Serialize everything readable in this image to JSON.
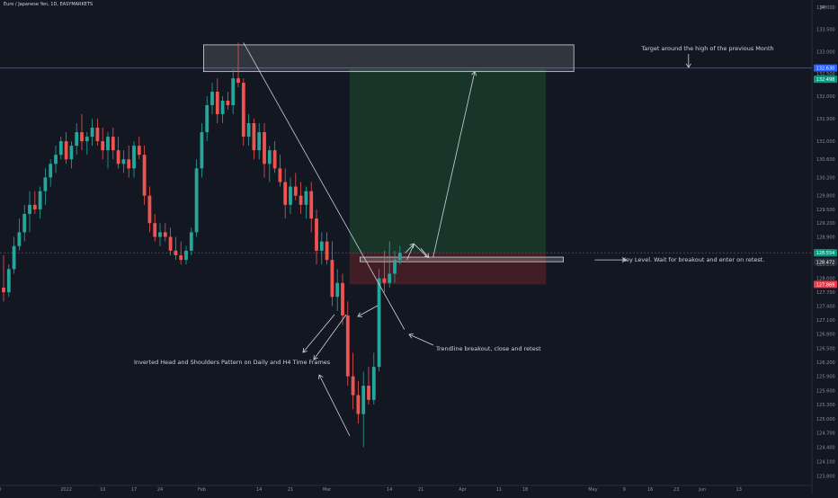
{
  "chart_data": {
    "type": "candlestick",
    "symbol_title": "Euro / Japanese Yen, 1D, EASYMARKETS",
    "currency": "JPY",
    "x_tick_labels": [
      "20",
      "2022",
      "10",
      "17",
      "24",
      "Feb",
      "14",
      "21",
      "Mar",
      "14",
      "21",
      "Apr",
      "11",
      "18",
      "May",
      "9",
      "16",
      "23",
      "Jun",
      "13"
    ],
    "y_tick_labels": [
      "123.800",
      "124.100",
      "124.400",
      "124.700",
      "125.000",
      "125.300",
      "125.600",
      "125.900",
      "126.200",
      "126.500",
      "126.800",
      "127.100",
      "127.400",
      "127.700",
      "128.000",
      "128.300",
      "128.600",
      "128.900",
      "129.200",
      "129.500",
      "129.800",
      "130.200",
      "130.600",
      "131.000",
      "131.500",
      "132.000",
      "132.500",
      "133.000",
      "133.500",
      "134.000"
    ],
    "y_range": [
      123.6,
      134.0
    ],
    "price_tags": [
      {
        "label": "132.630",
        "price": 132.63,
        "color": "#2962ff"
      },
      {
        "label": "132.498",
        "price": 132.5,
        "color": "#089981"
      },
      {
        "label": "128.554",
        "price": 128.554,
        "color": "#089981"
      },
      {
        "label": "128.472",
        "price": 128.472,
        "color": "#2a2e39"
      },
      {
        "label": "127.869",
        "price": 127.869,
        "color": "#f23645"
      }
    ],
    "candles": [
      {
        "o": 127.8,
        "h": 128.5,
        "l": 127.5,
        "c": 127.7
      },
      {
        "o": 127.7,
        "h": 128.3,
        "l": 127.6,
        "c": 128.2
      },
      {
        "o": 128.2,
        "h": 128.9,
        "l": 128.1,
        "c": 128.7
      },
      {
        "o": 128.7,
        "h": 129.3,
        "l": 128.6,
        "c": 129.0
      },
      {
        "o": 129.0,
        "h": 129.6,
        "l": 128.8,
        "c": 129.4
      },
      {
        "o": 129.4,
        "h": 129.9,
        "l": 129.0,
        "c": 129.6
      },
      {
        "o": 129.6,
        "h": 129.9,
        "l": 129.4,
        "c": 129.5
      },
      {
        "o": 129.5,
        "h": 130.0,
        "l": 129.3,
        "c": 129.9
      },
      {
        "o": 129.9,
        "h": 130.4,
        "l": 129.6,
        "c": 130.2
      },
      {
        "o": 130.2,
        "h": 130.6,
        "l": 130.0,
        "c": 130.5
      },
      {
        "o": 130.5,
        "h": 130.9,
        "l": 130.3,
        "c": 130.7
      },
      {
        "o": 130.7,
        "h": 131.1,
        "l": 130.6,
        "c": 131.0
      },
      {
        "o": 131.0,
        "h": 131.2,
        "l": 130.5,
        "c": 130.6
      },
      {
        "o": 130.6,
        "h": 131.0,
        "l": 130.4,
        "c": 130.9
      },
      {
        "o": 130.9,
        "h": 131.4,
        "l": 130.7,
        "c": 131.2
      },
      {
        "o": 131.2,
        "h": 131.6,
        "l": 130.8,
        "c": 131.0
      },
      {
        "o": 131.0,
        "h": 131.2,
        "l": 130.7,
        "c": 131.1
      },
      {
        "o": 131.1,
        "h": 131.5,
        "l": 130.9,
        "c": 131.3
      },
      {
        "o": 131.3,
        "h": 131.5,
        "l": 130.9,
        "c": 131.0
      },
      {
        "o": 131.0,
        "h": 131.3,
        "l": 130.6,
        "c": 130.8
      },
      {
        "o": 130.8,
        "h": 131.2,
        "l": 130.4,
        "c": 131.1
      },
      {
        "o": 131.1,
        "h": 131.3,
        "l": 130.6,
        "c": 130.8
      },
      {
        "o": 130.8,
        "h": 131.1,
        "l": 130.4,
        "c": 130.5
      },
      {
        "o": 130.5,
        "h": 130.8,
        "l": 130.3,
        "c": 130.6
      },
      {
        "o": 130.6,
        "h": 130.9,
        "l": 130.2,
        "c": 130.4
      },
      {
        "o": 130.4,
        "h": 131.0,
        "l": 130.2,
        "c": 130.9
      },
      {
        "o": 130.9,
        "h": 131.1,
        "l": 130.6,
        "c": 130.7
      },
      {
        "o": 130.7,
        "h": 130.9,
        "l": 129.6,
        "c": 129.8
      },
      {
        "o": 129.8,
        "h": 130.0,
        "l": 129.0,
        "c": 129.2
      },
      {
        "o": 129.2,
        "h": 129.4,
        "l": 128.8,
        "c": 128.9
      },
      {
        "o": 128.9,
        "h": 129.2,
        "l": 128.7,
        "c": 129.0
      },
      {
        "o": 129.0,
        "h": 129.2,
        "l": 128.8,
        "c": 128.9
      },
      {
        "o": 128.9,
        "h": 129.1,
        "l": 128.5,
        "c": 128.6
      },
      {
        "o": 128.6,
        "h": 128.9,
        "l": 128.4,
        "c": 128.5
      },
      {
        "o": 128.5,
        "h": 128.8,
        "l": 128.3,
        "c": 128.4
      },
      {
        "o": 128.4,
        "h": 128.7,
        "l": 128.3,
        "c": 128.6
      },
      {
        "o": 128.6,
        "h": 129.1,
        "l": 128.5,
        "c": 129.0
      },
      {
        "o": 129.0,
        "h": 130.6,
        "l": 128.9,
        "c": 130.4
      },
      {
        "o": 130.4,
        "h": 131.4,
        "l": 130.2,
        "c": 131.2
      },
      {
        "o": 131.2,
        "h": 132.0,
        "l": 131.0,
        "c": 131.8
      },
      {
        "o": 131.8,
        "h": 132.3,
        "l": 131.6,
        "c": 132.1
      },
      {
        "o": 132.1,
        "h": 132.4,
        "l": 131.4,
        "c": 131.6
      },
      {
        "o": 131.6,
        "h": 132.0,
        "l": 131.4,
        "c": 131.9
      },
      {
        "o": 131.9,
        "h": 132.1,
        "l": 131.7,
        "c": 131.8
      },
      {
        "o": 131.8,
        "h": 132.6,
        "l": 131.6,
        "c": 132.4
      },
      {
        "o": 132.4,
        "h": 133.2,
        "l": 132.2,
        "c": 132.3
      },
      {
        "o": 132.3,
        "h": 132.4,
        "l": 130.9,
        "c": 131.1
      },
      {
        "o": 131.1,
        "h": 131.6,
        "l": 130.9,
        "c": 131.4
      },
      {
        "o": 131.4,
        "h": 131.5,
        "l": 130.6,
        "c": 130.8
      },
      {
        "o": 130.8,
        "h": 131.4,
        "l": 130.6,
        "c": 131.2
      },
      {
        "o": 131.2,
        "h": 131.4,
        "l": 130.2,
        "c": 130.5
      },
      {
        "o": 130.5,
        "h": 130.9,
        "l": 130.1,
        "c": 130.8
      },
      {
        "o": 130.8,
        "h": 131.0,
        "l": 130.3,
        "c": 130.4
      },
      {
        "o": 130.4,
        "h": 130.7,
        "l": 130.0,
        "c": 130.1
      },
      {
        "o": 130.1,
        "h": 130.4,
        "l": 129.3,
        "c": 129.6
      },
      {
        "o": 129.6,
        "h": 130.2,
        "l": 129.4,
        "c": 130.0
      },
      {
        "o": 130.0,
        "h": 130.3,
        "l": 129.7,
        "c": 129.8
      },
      {
        "o": 129.8,
        "h": 130.1,
        "l": 129.4,
        "c": 129.6
      },
      {
        "o": 129.6,
        "h": 130.0,
        "l": 129.3,
        "c": 129.9
      },
      {
        "o": 129.9,
        "h": 130.1,
        "l": 129.0,
        "c": 129.3
      },
      {
        "o": 129.3,
        "h": 129.5,
        "l": 128.3,
        "c": 128.6
      },
      {
        "o": 128.6,
        "h": 129.0,
        "l": 128.3,
        "c": 128.8
      },
      {
        "o": 128.8,
        "h": 129.0,
        "l": 128.3,
        "c": 128.4
      },
      {
        "o": 128.4,
        "h": 128.8,
        "l": 127.4,
        "c": 127.6
      },
      {
        "o": 127.6,
        "h": 128.2,
        "l": 127.3,
        "c": 127.9
      },
      {
        "o": 127.9,
        "h": 128.1,
        "l": 127.0,
        "c": 127.2
      },
      {
        "o": 127.2,
        "h": 127.5,
        "l": 125.7,
        "c": 125.9
      },
      {
        "o": 125.9,
        "h": 126.4,
        "l": 125.2,
        "c": 125.5
      },
      {
        "o": 125.5,
        "h": 125.8,
        "l": 124.9,
        "c": 125.1
      },
      {
        "o": 125.1,
        "h": 126.0,
        "l": 124.4,
        "c": 125.7
      },
      {
        "o": 125.7,
        "h": 126.1,
        "l": 125.3,
        "c": 125.4
      },
      {
        "o": 125.4,
        "h": 126.4,
        "l": 125.3,
        "c": 126.1
      },
      {
        "o": 126.1,
        "h": 128.2,
        "l": 126.0,
        "c": 128.0
      },
      {
        "o": 128.0,
        "h": 128.6,
        "l": 127.7,
        "c": 127.9
      },
      {
        "o": 127.9,
        "h": 128.8,
        "l": 127.8,
        "c": 128.1
      },
      {
        "o": 128.1,
        "h": 128.6,
        "l": 127.9,
        "c": 128.4
      },
      {
        "o": 128.4,
        "h": 128.7,
        "l": 128.3,
        "c": 128.55
      }
    ],
    "zones": {
      "target_box": {
        "top": 133.15,
        "bottom": 132.55
      },
      "take_profit": {
        "top": 132.6,
        "bottom": 128.55
      },
      "stop_loss": {
        "top": 128.55,
        "bottom": 127.87
      },
      "key_level_box": {
        "top": 128.46,
        "bottom": 128.36
      }
    },
    "hlines": [
      {
        "price": 132.63,
        "color": "#2962ff"
      },
      {
        "price": 128.554,
        "color": "#5d606b"
      }
    ],
    "annotations": [
      "Target around the high of the previous Month",
      "Key Level. Wait for breakout and enter on retest.",
      "Trendline breakout, close and retest",
      "Inverted Head and Shoulders Pattern on Daily and H4 Time Frames"
    ]
  }
}
